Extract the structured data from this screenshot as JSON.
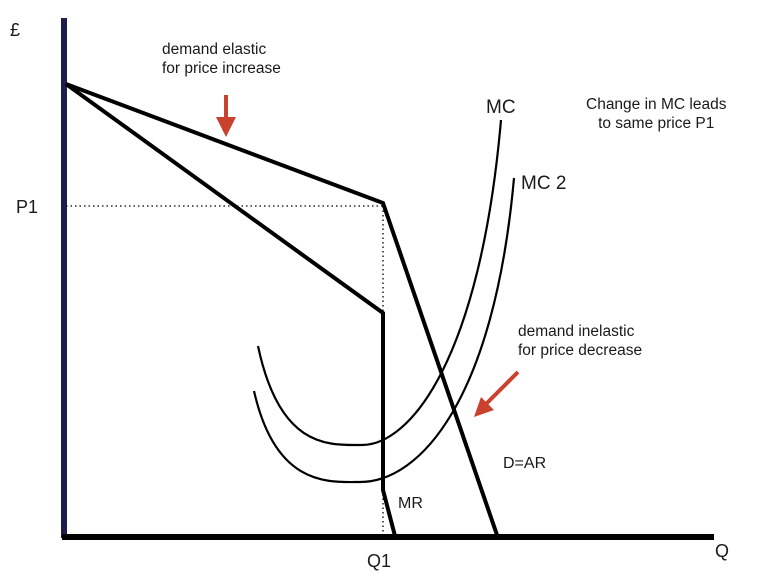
{
  "axes": {
    "y_label": "£",
    "x_label": "Q",
    "p1_label": "P1",
    "q1_label": "Q1"
  },
  "curves": {
    "mc": "MC",
    "mc2": "MC 2",
    "demand": "D=AR",
    "mr": "MR"
  },
  "annotations": {
    "elastic_line1": "demand elastic",
    "elastic_line2": "for price increase",
    "inelastic_line1": "demand inelastic",
    "inelastic_line2": "for price decrease",
    "note_line1": "Change in MC leads",
    "note_line2": "to same price P1"
  },
  "colors": {
    "y_axis": "#1b1f4a",
    "curves": "#000000",
    "arrows": "#c8422d"
  }
}
